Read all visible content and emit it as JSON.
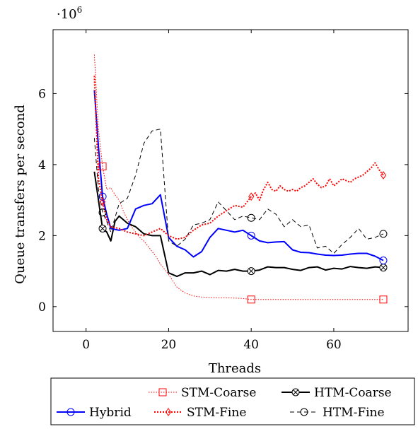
{
  "chart_data": {
    "type": "line",
    "xlabel": "Threads",
    "ylabel": "Queue transfers per second",
    "y_multiplier": "·10",
    "y_multiplier_exp": "6",
    "xlim": [
      -8,
      78
    ],
    "ylim": [
      -700000,
      7800000
    ],
    "xticks": [
      0,
      20,
      40,
      60
    ],
    "xtick_labels": [
      "0",
      "20",
      "40",
      "60"
    ],
    "yticks": [
      0,
      2000000,
      4000000,
      6000000
    ],
    "ytick_labels": [
      "0",
      "2",
      "4",
      "6"
    ],
    "grid": false,
    "legend_placement": "below",
    "series": [
      {
        "name": "STM-Coarse",
        "color": "#ff0000",
        "dash": "1.5 2",
        "width": 1,
        "marker": "square",
        "x": [
          2,
          3,
          4,
          5,
          6,
          7,
          8,
          9,
          10,
          11,
          12,
          13,
          14,
          15,
          16,
          17,
          18,
          19,
          20,
          22,
          24,
          26,
          28,
          30,
          32,
          34,
          36,
          38,
          40,
          42,
          44,
          46,
          48,
          50,
          52,
          54,
          56,
          58,
          60,
          62,
          64,
          66,
          68,
          70,
          72
        ],
        "y": [
          7100000,
          5000000,
          3950000,
          3300000,
          3350000,
          3150000,
          3000000,
          2700000,
          2450000,
          2250000,
          2100000,
          1950000,
          1850000,
          1700000,
          1550000,
          1400000,
          1200000,
          1050000,
          900000,
          550000,
          380000,
          300000,
          270000,
          260000,
          250000,
          250000,
          240000,
          230000,
          200000,
          200000,
          200000,
          200000,
          200000,
          200000,
          200000,
          200000,
          200000,
          200000,
          200000,
          200000,
          200000,
          200000,
          200000,
          200000,
          200000
        ],
        "marker_x": [
          4,
          40,
          72
        ],
        "marker_y": [
          3950000,
          200000,
          200000
        ]
      },
      {
        "name": "HTM-Coarse",
        "color": "#000000",
        "dash": "",
        "width": 2,
        "marker": "otimes",
        "x": [
          2,
          3,
          4,
          5,
          6,
          7,
          8,
          10,
          12,
          14,
          16,
          18,
          20,
          22,
          24,
          26,
          28,
          30,
          32,
          34,
          36,
          38,
          40,
          42,
          44,
          46,
          48,
          50,
          52,
          54,
          56,
          58,
          60,
          62,
          64,
          66,
          68,
          70,
          72
        ],
        "y": [
          3800000,
          3000000,
          2200000,
          2100000,
          1850000,
          2400000,
          2550000,
          2350000,
          2250000,
          2050000,
          2000000,
          2000000,
          950000,
          850000,
          950000,
          950000,
          1000000,
          900000,
          1020000,
          1000000,
          1050000,
          1000000,
          1000000,
          1030000,
          1120000,
          1100000,
          1100000,
          1050000,
          1020000,
          1100000,
          1120000,
          1030000,
          1080000,
          1060000,
          1130000,
          1100000,
          1080000,
          1120000,
          1100000
        ],
        "marker_x": [
          4,
          40,
          72
        ],
        "marker_y": [
          2200000,
          1000000,
          1100000
        ]
      },
      {
        "name": "Hybrid",
        "color": "#0000ff",
        "dash": "",
        "width": 2,
        "marker": "circle",
        "x": [
          2,
          3,
          4,
          5,
          6,
          8,
          10,
          12,
          14,
          16,
          18,
          20,
          22,
          24,
          26,
          28,
          30,
          32,
          34,
          36,
          38,
          40,
          42,
          44,
          46,
          48,
          50,
          52,
          54,
          56,
          58,
          60,
          62,
          64,
          66,
          68,
          70,
          72
        ],
        "y": [
          6100000,
          4500000,
          3100000,
          2600000,
          2200000,
          2150000,
          2200000,
          2750000,
          2850000,
          2900000,
          3150000,
          1950000,
          1700000,
          1600000,
          1400000,
          1550000,
          1950000,
          2200000,
          2150000,
          2100000,
          2150000,
          2000000,
          1850000,
          1800000,
          1820000,
          1830000,
          1600000,
          1530000,
          1520000,
          1480000,
          1450000,
          1440000,
          1450000,
          1480000,
          1500000,
          1500000,
          1420000,
          1300000
        ],
        "marker_x": [
          4,
          40,
          72
        ],
        "marker_y": [
          3100000,
          2000000,
          1300000
        ]
      },
      {
        "name": "STM-Fine",
        "color": "#ff0000",
        "dash": "2 2",
        "width": 2,
        "marker": "diamond",
        "x": [
          2,
          3,
          4,
          5,
          6,
          8,
          10,
          12,
          14,
          16,
          18,
          20,
          22,
          24,
          26,
          28,
          30,
          32,
          34,
          36,
          38,
          40,
          41,
          42,
          43,
          44,
          45,
          46,
          47,
          48,
          49,
          50,
          51,
          52,
          53,
          54,
          55,
          56,
          57,
          58,
          59,
          60,
          61,
          62,
          63,
          64,
          65,
          66,
          67,
          68,
          69,
          70,
          71,
          72
        ],
        "y": [
          6500000,
          3600000,
          2950000,
          2450000,
          2250000,
          2200000,
          2100000,
          2050000,
          2000000,
          2100000,
          2200000,
          2000000,
          1900000,
          1950000,
          2150000,
          2300000,
          2350000,
          2550000,
          2700000,
          2850000,
          2800000,
          3100000,
          3200000,
          3000000,
          3300000,
          3500000,
          3300000,
          3250000,
          3400000,
          3300000,
          3250000,
          3300000,
          3250000,
          3350000,
          3400000,
          3500000,
          3600000,
          3450000,
          3350000,
          3400000,
          3600000,
          3400000,
          3500000,
          3600000,
          3550000,
          3500000,
          3600000,
          3650000,
          3700000,
          3800000,
          3900000,
          4050000,
          3850000,
          3700000
        ],
        "marker_x": [
          4,
          40,
          72
        ],
        "marker_y": [
          2950000,
          3100000,
          3700000
        ]
      },
      {
        "name": "HTM-Fine",
        "color": "#000000",
        "dash": "6 4",
        "width": 1,
        "marker": "circle",
        "x": [
          2,
          3,
          4,
          5,
          6,
          8,
          10,
          12,
          14,
          16,
          18,
          20,
          22,
          24,
          26,
          28,
          30,
          32,
          34,
          36,
          38,
          40,
          42,
          44,
          46,
          48,
          50,
          52,
          54,
          56,
          58,
          60,
          62,
          64,
          66,
          68,
          70,
          72
        ],
        "y": [
          4750000,
          3300000,
          2650000,
          2400000,
          2100000,
          2900000,
          3050000,
          3700000,
          4600000,
          4950000,
          5000000,
          1850000,
          1700000,
          1900000,
          2300000,
          2350000,
          2450000,
          2950000,
          2700000,
          2450000,
          2550000,
          2500000,
          2450000,
          2750000,
          2600000,
          2250000,
          2450000,
          2250000,
          2300000,
          1650000,
          1700000,
          1500000,
          1750000,
          1950000,
          2200000,
          1900000,
          1950000,
          2050000
        ],
        "marker_x": [
          4,
          40,
          72
        ],
        "marker_y": [
          2650000,
          2500000,
          2050000
        ]
      }
    ],
    "legend_rows": [
      [
        "STM-Coarse",
        "HTM-Coarse"
      ],
      [
        "Hybrid",
        "STM-Fine",
        "HTM-Fine"
      ]
    ]
  }
}
